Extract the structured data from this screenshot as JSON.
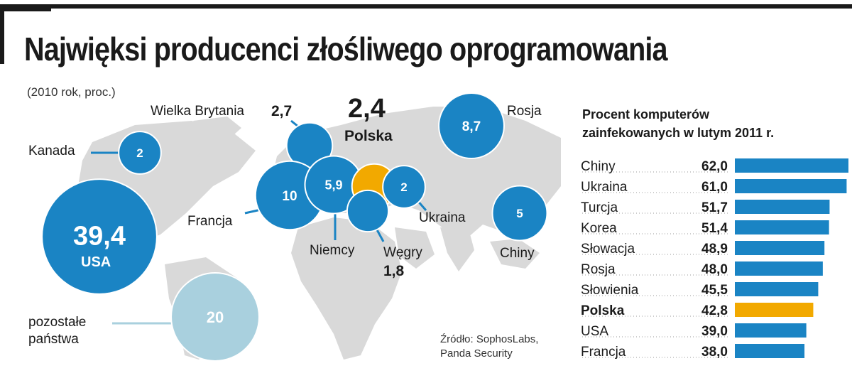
{
  "title": "Najwięksi producenci złośliwego oprogramowania",
  "subtitle": "(2010 rok, proc.)",
  "source_line1": "Źródło: SophosLabs,",
  "source_line2": "Panda Security",
  "colors": {
    "bubble": "#1a84c4",
    "highlight": "#f2a900",
    "other": "#a9d0de",
    "map": "#d9d9d9"
  },
  "chart_data": [
    {
      "type": "bubble",
      "title": "Najwięksi producenci złośliwego oprogramowania",
      "subtitle": "(2010 rok, proc.)",
      "points": [
        {
          "country": "USA",
          "value": "39,4",
          "label_lines": [
            "USA"
          ]
        },
        {
          "country": "Kanada",
          "value": "2",
          "label_lines": [
            "Kanada"
          ]
        },
        {
          "country": "Wielka Brytania",
          "value": "2,7",
          "label_lines": [
            "Wielka Brytania"
          ]
        },
        {
          "country": "Francja",
          "value": "10",
          "label_lines": [
            "Francja"
          ]
        },
        {
          "country": "Niemcy",
          "value": "5,9",
          "label_lines": [
            "Niemcy"
          ]
        },
        {
          "country": "Polska",
          "value": "2,4",
          "label_lines": [
            "Polska"
          ],
          "highlight": true
        },
        {
          "country": "Węgry",
          "value": "1,8",
          "label_lines": [
            "Węgry"
          ]
        },
        {
          "country": "Ukraina",
          "value": "2",
          "label_lines": [
            "Ukraina"
          ]
        },
        {
          "country": "Rosja",
          "value": "8,7",
          "label_lines": [
            "Rosja"
          ]
        },
        {
          "country": "Chiny",
          "value": "5",
          "label_lines": [
            "Chiny"
          ]
        },
        {
          "country": "pozostałe państwa",
          "value": "20",
          "label_lines": [
            "pozostałe",
            "państwa"
          ]
        }
      ]
    },
    {
      "type": "bar",
      "orientation": "horizontal",
      "title_line1": "Procent komputerów",
      "title_line2": "zainfekowanych w lutym 2011 r.",
      "categories": [
        "Chiny",
        "Ukraina",
        "Turcja",
        "Korea",
        "Słowacja",
        "Rosja",
        "Słowienia",
        "Polska",
        "USA",
        "Francja"
      ],
      "values": [
        62.0,
        61.0,
        51.7,
        51.4,
        48.9,
        48.0,
        45.5,
        42.8,
        39.0,
        38.0
      ],
      "value_labels": [
        "62,0",
        "61,0",
        "51,7",
        "51,4",
        "48,9",
        "48,0",
        "45,5",
        "42,8",
        "39,0",
        "38,0"
      ],
      "highlight": "Polska",
      "xlim": [
        0,
        62
      ]
    }
  ]
}
